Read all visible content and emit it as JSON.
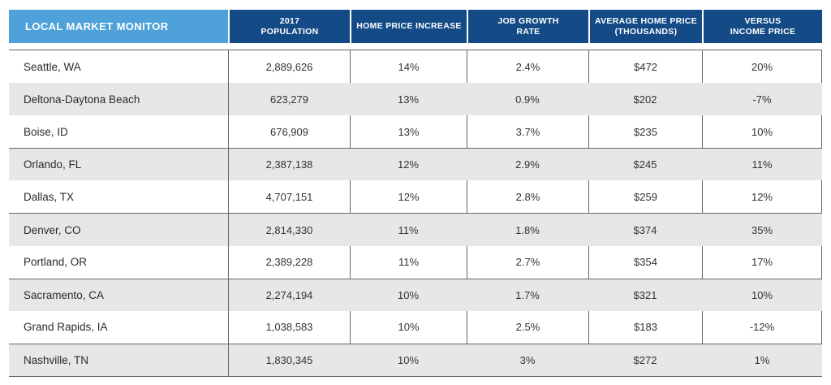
{
  "table": {
    "headers": [
      "LOCAL MARKET MONITOR",
      "2017\nPOPULATION",
      "HOME PRICE INCREASE",
      "JOB GROWTH\nRATE",
      "AVERAGE HOME PRICE\n(THOUSANDS)",
      "VERSUS\nINCOME PRICE"
    ],
    "rows": [
      [
        "Seattle, WA",
        "2,889,626",
        "14%",
        "2.4%",
        "$472",
        "20%"
      ],
      [
        "Deltona-Daytona Beach",
        "623,279",
        "13%",
        "0.9%",
        "$202",
        "-7%"
      ],
      [
        "Boise, ID",
        "676,909",
        "13%",
        "3.7%",
        "$235",
        "10%"
      ],
      [
        "Orlando, FL",
        "2,387,138",
        "12%",
        "2.9%",
        "$245",
        "11%"
      ],
      [
        "Dallas, TX",
        "4,707,151",
        "12%",
        "2.8%",
        "$259",
        "12%"
      ],
      [
        "Denver, CO",
        "2,814,330",
        "11%",
        "1.8%",
        "$374",
        "35%"
      ],
      [
        "Portland, OR",
        "2,389,228",
        "11%",
        "2.7%",
        "$354",
        "17%"
      ],
      [
        "Sacramento, CA",
        "2,274,194",
        "10%",
        "1.7%",
        "$321",
        "10%"
      ],
      [
        "Grand Rapids, IA",
        "1,038,583",
        "10%",
        "2.5%",
        "$183",
        "-12%"
      ],
      [
        "Nashville, TN",
        "1,830,345",
        "10%",
        "3%",
        "$272",
        "1%"
      ]
    ]
  },
  "colors": {
    "title_header_bg": "#4ea2d9",
    "column_header_bg": "#144b86",
    "shaded_row_bg": "#e6e7e8"
  }
}
